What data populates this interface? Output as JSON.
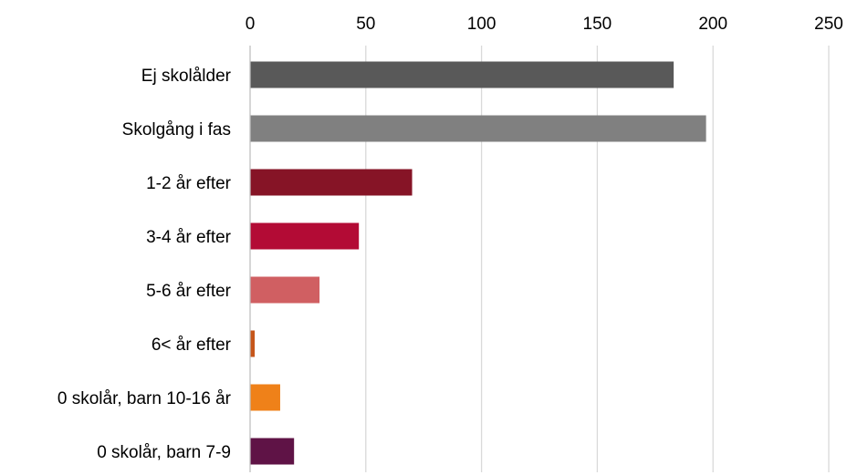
{
  "chart_data": {
    "type": "bar",
    "orientation": "horizontal",
    "title": "",
    "xlabel": "",
    "ylabel": "",
    "xlim": [
      0,
      250
    ],
    "x_ticks": [
      0,
      50,
      100,
      150,
      200,
      250
    ],
    "x_tick_labels": [
      "0",
      "50",
      "100",
      "150",
      "200",
      "250"
    ],
    "x_axis_position": "top",
    "grid": true,
    "legend": "none",
    "categories": [
      "Ej skolålder",
      "Skolgång i fas",
      "1-2 år efter",
      "3-4 år efter",
      "5-6 år efter",
      "6< år efter",
      "0 skolår, barn 10-16 år",
      "0 skolår, barn 7-9"
    ],
    "values": [
      183,
      197,
      70,
      47,
      30,
      2,
      13,
      19
    ],
    "colors": [
      "#595959",
      "#808080",
      "#861426",
      "#b30b35",
      "#d05f62",
      "#c6561a",
      "#ef8119",
      "#5f1346"
    ]
  }
}
